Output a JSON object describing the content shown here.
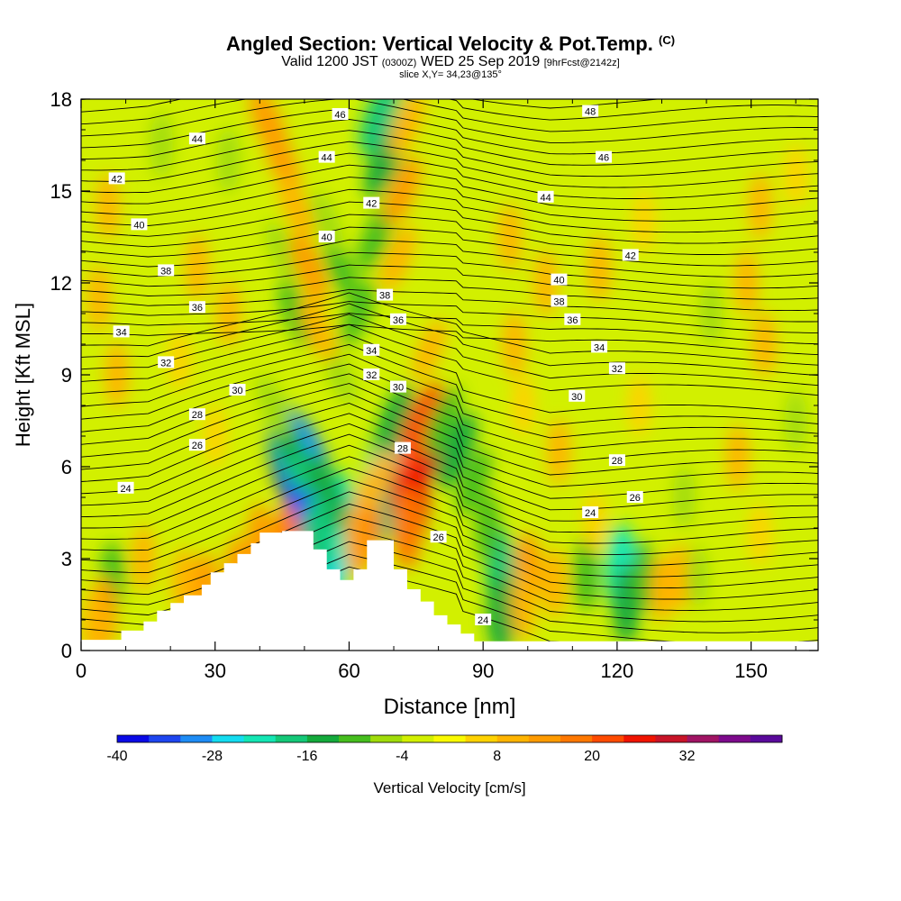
{
  "header": {
    "title": "Angled Section: Vertical Velocity & Pot.Temp.",
    "title_mark": "(C)",
    "valid_prefix": "Valid 1200 JST",
    "valid_zulu": "(0300Z)",
    "valid_date": "WED 25 Sep 2019",
    "forecast": "[9hrFcst@2142z]",
    "slice": "slice X,Y= 34,23@135°"
  },
  "chart_data": {
    "type": "heatmap",
    "xlabel": "Distance [nm]",
    "ylabel": "Height [Kft MSL]",
    "xlim": [
      0,
      165
    ],
    "ylim": [
      0,
      18
    ],
    "x_ticks": [
      0,
      30,
      60,
      90,
      120,
      150
    ],
    "y_ticks": [
      0,
      3,
      6,
      9,
      12,
      15,
      18
    ],
    "colorbar": {
      "label": "Vertical Velocity [cm/s]",
      "min": -40,
      "max": 44,
      "step": 4,
      "tick_labels": [
        "-40",
        "-28",
        "-16",
        "-4",
        "8",
        "20",
        "32"
      ],
      "colors": [
        "#0a0ae6",
        "#1e46f0",
        "#1e8cf5",
        "#14dcf0",
        "#14e6b4",
        "#14c878",
        "#14aa3c",
        "#46be1e",
        "#a0dc0a",
        "#d2f000",
        "#fafa00",
        "#ffd200",
        "#ffb400",
        "#ff9b00",
        "#ff7800",
        "#ff4b00",
        "#f01400",
        "#c81428",
        "#a01464",
        "#7d0a8c",
        "#5a0a9b"
      ]
    },
    "terrain_kft": [
      [
        0,
        0.35
      ],
      [
        9,
        0.35
      ],
      [
        9,
        0.65
      ],
      [
        14,
        0.65
      ],
      [
        14,
        0.95
      ],
      [
        17,
        0.95
      ],
      [
        17,
        1.3
      ],
      [
        20,
        1.3
      ],
      [
        20,
        1.55
      ],
      [
        23,
        1.55
      ],
      [
        23,
        1.8
      ],
      [
        27,
        1.8
      ],
      [
        27,
        2.15
      ],
      [
        29,
        2.15
      ],
      [
        29,
        2.55
      ],
      [
        32,
        2.55
      ],
      [
        32,
        2.85
      ],
      [
        35,
        2.85
      ],
      [
        35,
        3.15
      ],
      [
        38,
        3.15
      ],
      [
        38,
        3.5
      ],
      [
        40,
        3.5
      ],
      [
        40,
        3.85
      ],
      [
        45,
        3.85
      ],
      [
        45,
        3.9
      ],
      [
        52,
        3.9
      ],
      [
        52,
        3.3
      ],
      [
        55,
        3.3
      ],
      [
        55,
        2.65
      ],
      [
        58,
        2.65
      ],
      [
        58,
        2.3
      ],
      [
        61,
        2.3
      ],
      [
        61,
        2.65
      ],
      [
        64,
        2.65
      ],
      [
        64,
        3.6
      ],
      [
        70,
        3.6
      ],
      [
        70,
        2.65
      ],
      [
        73,
        2.65
      ],
      [
        73,
        2.0
      ],
      [
        76,
        2.0
      ],
      [
        76,
        1.6
      ],
      [
        79,
        1.6
      ],
      [
        79,
        1.15
      ],
      [
        82,
        1.15
      ],
      [
        82,
        0.85
      ],
      [
        85,
        0.85
      ],
      [
        85,
        0.55
      ],
      [
        88,
        0.55
      ],
      [
        88,
        0.3
      ],
      [
        165,
        0.3
      ]
    ],
    "theta_contour_labels": [
      "24",
      "26",
      "28",
      "30",
      "32",
      "34",
      "36",
      "38",
      "40",
      "42",
      "44",
      "46",
      "48"
    ],
    "theta_label_positions": [
      {
        "label": "24",
        "x": 10,
        "y": 5.3
      },
      {
        "label": "26",
        "x": 26,
        "y": 6.7
      },
      {
        "label": "28",
        "x": 26,
        "y": 7.7
      },
      {
        "label": "30",
        "x": 35,
        "y": 8.5
      },
      {
        "label": "32",
        "x": 19,
        "y": 9.4
      },
      {
        "label": "34",
        "x": 9,
        "y": 10.4
      },
      {
        "label": "36",
        "x": 26,
        "y": 11.2
      },
      {
        "label": "38",
        "x": 19,
        "y": 12.4
      },
      {
        "label": "40",
        "x": 13,
        "y": 13.9
      },
      {
        "label": "42",
        "x": 8,
        "y": 15.4
      },
      {
        "label": "44",
        "x": 26,
        "y": 16.7
      },
      {
        "label": "46",
        "x": 58,
        "y": 17.5
      },
      {
        "label": "44",
        "x": 55,
        "y": 16.1
      },
      {
        "label": "42",
        "x": 65,
        "y": 14.6
      },
      {
        "label": "40",
        "x": 55,
        "y": 13.5
      },
      {
        "label": "38",
        "x": 68,
        "y": 11.6
      },
      {
        "label": "36",
        "x": 71,
        "y": 10.8
      },
      {
        "label": "34",
        "x": 65,
        "y": 9.8
      },
      {
        "label": "32",
        "x": 65,
        "y": 9.0
      },
      {
        "label": "30",
        "x": 71,
        "y": 8.6
      },
      {
        "label": "28",
        "x": 72,
        "y": 6.6
      },
      {
        "label": "26",
        "x": 80,
        "y": 3.7
      },
      {
        "label": "24",
        "x": 90,
        "y": 1.0
      },
      {
        "label": "48",
        "x": 114,
        "y": 17.6
      },
      {
        "label": "46",
        "x": 117,
        "y": 16.1
      },
      {
        "label": "44",
        "x": 104,
        "y": 14.8
      },
      {
        "label": "42",
        "x": 123,
        "y": 12.9
      },
      {
        "label": "40",
        "x": 107,
        "y": 12.1
      },
      {
        "label": "38",
        "x": 107,
        "y": 11.4
      },
      {
        "label": "36",
        "x": 110,
        "y": 10.8
      },
      {
        "label": "34",
        "x": 116,
        "y": 9.9
      },
      {
        "label": "32",
        "x": 120,
        "y": 9.2
      },
      {
        "label": "30",
        "x": 111,
        "y": 8.3
      },
      {
        "label": "28",
        "x": 120,
        "y": 6.2
      },
      {
        "label": "26",
        "x": 124,
        "y": 5.0
      },
      {
        "label": "24",
        "x": 114,
        "y": 4.5
      }
    ],
    "velocity_cells": [
      {
        "x": 49,
        "y": 5.5,
        "v": -40
      },
      {
        "x": 50,
        "y": 4.6,
        "v": -36
      },
      {
        "x": 51,
        "y": 6.2,
        "v": -30
      },
      {
        "x": 47,
        "y": 6.5,
        "v": -20
      },
      {
        "x": 56,
        "y": 3.2,
        "v": -26
      },
      {
        "x": 58,
        "y": 4.3,
        "v": -22
      },
      {
        "x": 55,
        "y": 5.2,
        "v": -16
      },
      {
        "x": 53,
        "y": 3.6,
        "v": -20
      },
      {
        "x": 68,
        "y": 6.3,
        "v": -24
      },
      {
        "x": 68,
        "y": 5.0,
        "v": -18
      },
      {
        "x": 70,
        "y": 7.5,
        "v": -14
      },
      {
        "x": 75,
        "y": 6.0,
        "v": 30
      },
      {
        "x": 74,
        "y": 5.0,
        "v": 26
      },
      {
        "x": 76,
        "y": 7.3,
        "v": 22
      },
      {
        "x": 73,
        "y": 4.0,
        "v": 16
      },
      {
        "x": 64,
        "y": 4.2,
        "v": 16
      },
      {
        "x": 66,
        "y": 5.5,
        "v": 10
      },
      {
        "x": 62,
        "y": 3.6,
        "v": 12
      },
      {
        "x": 46,
        "y": 3.4,
        "v": 16
      },
      {
        "x": 43,
        "y": 2.8,
        "v": 14
      },
      {
        "x": 40,
        "y": 3.6,
        "v": 12
      },
      {
        "x": 35,
        "y": 2.5,
        "v": 12
      },
      {
        "x": 28,
        "y": 2.0,
        "v": 12
      },
      {
        "x": 23,
        "y": 2.2,
        "v": 10
      },
      {
        "x": 45,
        "y": 7.4,
        "v": -14
      },
      {
        "x": 43,
        "y": 8.0,
        "v": -8
      },
      {
        "x": 58,
        "y": 9.0,
        "v": -8
      },
      {
        "x": 62,
        "y": 11.0,
        "v": -10
      },
      {
        "x": 58,
        "y": 12.5,
        "v": -10
      },
      {
        "x": 55,
        "y": 14.0,
        "v": -8
      },
      {
        "x": 48,
        "y": 11.0,
        "v": -10
      },
      {
        "x": 45,
        "y": 13.0,
        "v": -8
      },
      {
        "x": 66,
        "y": 13.5,
        "v": -12
      },
      {
        "x": 68,
        "y": 16.0,
        "v": -16
      },
      {
        "x": 67,
        "y": 17.5,
        "v": -18
      },
      {
        "x": 42,
        "y": 17.2,
        "v": 14
      },
      {
        "x": 45,
        "y": 16.0,
        "v": 12
      },
      {
        "x": 48,
        "y": 14.5,
        "v": 10
      },
      {
        "x": 51,
        "y": 12.5,
        "v": 12
      },
      {
        "x": 53,
        "y": 10.5,
        "v": 10
      },
      {
        "x": 72,
        "y": 15.0,
        "v": 12
      },
      {
        "x": 73,
        "y": 17.2,
        "v": 10
      },
      {
        "x": 71,
        "y": 12.8,
        "v": 10
      },
      {
        "x": 78,
        "y": 9.8,
        "v": 8
      },
      {
        "x": 84,
        "y": 6.5,
        "v": -16
      },
      {
        "x": 81,
        "y": 7.5,
        "v": -12
      },
      {
        "x": 88,
        "y": 5.5,
        "v": -10
      },
      {
        "x": 94,
        "y": 2.5,
        "v": -20
      },
      {
        "x": 94,
        "y": 1.2,
        "v": -16
      },
      {
        "x": 91,
        "y": 4.0,
        "v": -10
      },
      {
        "x": 100,
        "y": 2.6,
        "v": 14
      },
      {
        "x": 99,
        "y": 1.5,
        "v": 10
      },
      {
        "x": 106,
        "y": 2.2,
        "v": 10
      },
      {
        "x": 113,
        "y": 2.5,
        "v": -12
      },
      {
        "x": 121,
        "y": 2.6,
        "v": -22
      },
      {
        "x": 122,
        "y": 1.5,
        "v": -14
      },
      {
        "x": 126,
        "y": 2.4,
        "v": -10
      },
      {
        "x": 130,
        "y": 2.0,
        "v": 8
      },
      {
        "x": 134,
        "y": 2.4,
        "v": 8
      },
      {
        "x": 138,
        "y": 2.4,
        "v": -6
      },
      {
        "x": 7,
        "y": 2.4,
        "v": -10
      },
      {
        "x": 5,
        "y": 1.2,
        "v": 12
      },
      {
        "x": 3,
        "y": 0.8,
        "v": 10
      },
      {
        "x": 14,
        "y": 3.0,
        "v": 8
      },
      {
        "x": 6,
        "y": 14.5,
        "v": 8
      },
      {
        "x": 4,
        "y": 11.5,
        "v": 8
      },
      {
        "x": 8,
        "y": 9.0,
        "v": 8
      },
      {
        "x": 18,
        "y": 16.5,
        "v": -8
      },
      {
        "x": 33,
        "y": 16.0,
        "v": -8
      },
      {
        "x": 26,
        "y": 12.5,
        "v": 8
      },
      {
        "x": 33,
        "y": 11.0,
        "v": 8
      },
      {
        "x": 30,
        "y": 7.0,
        "v": 6
      },
      {
        "x": 22,
        "y": 9.5,
        "v": 6
      },
      {
        "x": 96,
        "y": 13.5,
        "v": 8
      },
      {
        "x": 104,
        "y": 12.0,
        "v": 8
      },
      {
        "x": 97,
        "y": 10.0,
        "v": 8
      },
      {
        "x": 116,
        "y": 12.5,
        "v": 8
      },
      {
        "x": 126,
        "y": 14.0,
        "v": 6
      },
      {
        "x": 141,
        "y": 11.0,
        "v": -6
      },
      {
        "x": 149,
        "y": 12.0,
        "v": 8
      },
      {
        "x": 152,
        "y": 14.5,
        "v": 8
      },
      {
        "x": 153,
        "y": 10.0,
        "v": 8
      },
      {
        "x": 160,
        "y": 15.5,
        "v": 6
      },
      {
        "x": 160,
        "y": 7.5,
        "v": -6
      },
      {
        "x": 137,
        "y": 8.5,
        "v": -4
      },
      {
        "x": 147,
        "y": 6.3,
        "v": 8
      },
      {
        "x": 125,
        "y": 8.0,
        "v": 6
      },
      {
        "x": 107,
        "y": 6.5,
        "v": 8
      },
      {
        "x": 135,
        "y": 5.0,
        "v": -6
      },
      {
        "x": 152,
        "y": 3.8,
        "v": 6
      },
      {
        "x": 157,
        "y": 1.6,
        "v": -4
      },
      {
        "x": 115,
        "y": 4.2,
        "v": 6
      },
      {
        "x": 99,
        "y": 8.0,
        "v": 6
      }
    ]
  }
}
